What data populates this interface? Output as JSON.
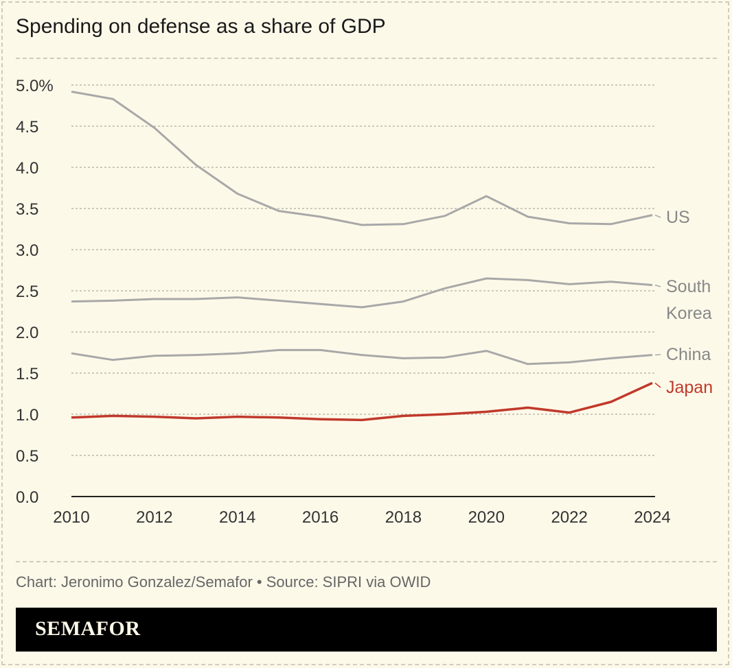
{
  "title": "Spending on defense as a share of GDP",
  "credit": "Chart: Jeronimo Gonzalez/Semafor • Source: SIPRI via OWID",
  "brand": "SEMAFOR",
  "chart_data": {
    "type": "line",
    "title": "Spending on defense as a share of GDP",
    "x": [
      2010,
      2011,
      2012,
      2013,
      2014,
      2015,
      2016,
      2017,
      2018,
      2019,
      2020,
      2021,
      2022,
      2023,
      2024
    ],
    "xticks": [
      "2010",
      "2012",
      "2014",
      "2016",
      "2018",
      "2020",
      "2022",
      "2024"
    ],
    "yticks": [
      "0.0",
      "0.5",
      "1.0",
      "1.5",
      "2.0",
      "2.5",
      "3.0",
      "3.5",
      "4.0",
      "4.5",
      "5.0%"
    ],
    "ylim": [
      0,
      5
    ],
    "grid": true,
    "series": [
      {
        "name": "US",
        "color": "#a8a8a8",
        "label_color": "#888888",
        "values": [
          4.92,
          4.83,
          4.48,
          4.03,
          3.68,
          3.47,
          3.4,
          3.3,
          3.31,
          3.41,
          3.65,
          3.4,
          3.32,
          3.31,
          3.42
        ]
      },
      {
        "name": "South Korea",
        "color": "#a8a8a8",
        "label_color": "#888888",
        "values": [
          2.37,
          2.38,
          2.4,
          2.4,
          2.42,
          2.38,
          2.34,
          2.3,
          2.37,
          2.53,
          2.65,
          2.63,
          2.58,
          2.61,
          2.57
        ]
      },
      {
        "name": "China",
        "color": "#a8a8a8",
        "label_color": "#888888",
        "values": [
          1.74,
          1.66,
          1.71,
          1.72,
          1.74,
          1.78,
          1.78,
          1.72,
          1.68,
          1.69,
          1.77,
          1.61,
          1.63,
          1.68,
          1.72
        ]
      },
      {
        "name": "Japan",
        "color": "#c0392b",
        "label_color": "#c0392b",
        "values": [
          0.96,
          0.98,
          0.97,
          0.95,
          0.97,
          0.96,
          0.94,
          0.93,
          0.98,
          1.0,
          1.03,
          1.08,
          1.02,
          1.15,
          1.38
        ]
      }
    ]
  }
}
